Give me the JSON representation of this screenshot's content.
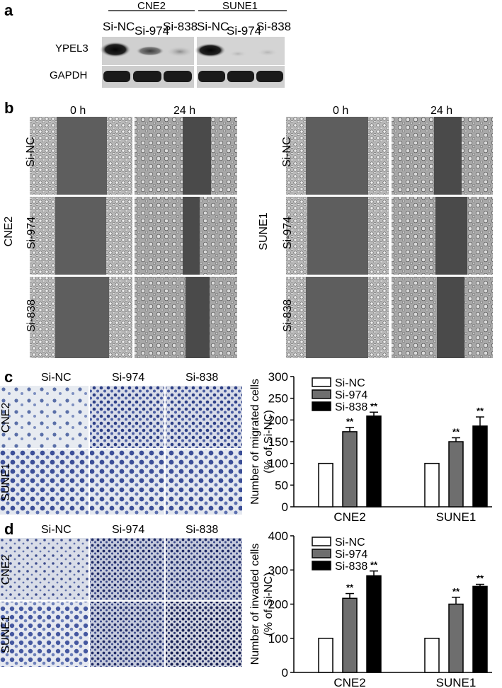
{
  "panels": {
    "a": "a",
    "b": "b",
    "c": "c",
    "d": "d"
  },
  "blot": {
    "groups": [
      "CNE2",
      "SUNE1"
    ],
    "lanes": [
      "Si-NC",
      "Si-974",
      "Si-838",
      "Si-NC",
      "Si-974",
      "Si-838"
    ],
    "rows": [
      "YPEL3",
      "GAPDH"
    ]
  },
  "wound": {
    "time_labels": [
      "0 h",
      "24 h"
    ],
    "row_labels": [
      "Si-NC",
      "Si-974",
      "Si-838"
    ],
    "cell_lines": [
      "CNE2",
      "SUNE1"
    ]
  },
  "transwell": {
    "col_labels": [
      "Si-NC",
      "Si-974",
      "Si-838"
    ],
    "row_labels": [
      "CNE2",
      "SUNE1"
    ]
  },
  "significance": "**",
  "chart_data": [
    {
      "type": "bar",
      "categories": [
        "CNE2",
        "SUNE1"
      ],
      "series": [
        {
          "name": "Si-NC",
          "values": [
            100,
            100
          ],
          "errors": [
            0,
            0
          ]
        },
        {
          "name": "Si-974",
          "values": [
            173,
            150
          ],
          "errors": [
            10,
            9
          ]
        },
        {
          "name": "Si-838",
          "values": [
            209,
            186
          ],
          "errors": [
            9,
            21
          ]
        }
      ],
      "ylabel": "Number of migrated cells",
      "ylabel2": "(% of Si-NC)",
      "ylim": [
        0,
        300
      ],
      "yticks": [
        0,
        50,
        100,
        150,
        200,
        250,
        300
      ],
      "legend": "top-left",
      "grid": false
    },
    {
      "type": "bar",
      "categories": [
        "CNE2",
        "SUNE1"
      ],
      "series": [
        {
          "name": "Si-NC",
          "values": [
            100,
            100
          ],
          "errors": [
            0,
            0
          ]
        },
        {
          "name": "Si-974",
          "values": [
            217,
            200
          ],
          "errors": [
            14,
            20
          ]
        },
        {
          "name": "Si-838",
          "values": [
            283,
            252
          ],
          "errors": [
            14,
            6
          ]
        }
      ],
      "ylabel": "Number of invaded cells",
      "ylabel2": "(% of Si-NC)",
      "ylim": [
        0,
        400
      ],
      "yticks": [
        0,
        100,
        200,
        300,
        400
      ],
      "legend": "top-left",
      "grid": false
    }
  ]
}
